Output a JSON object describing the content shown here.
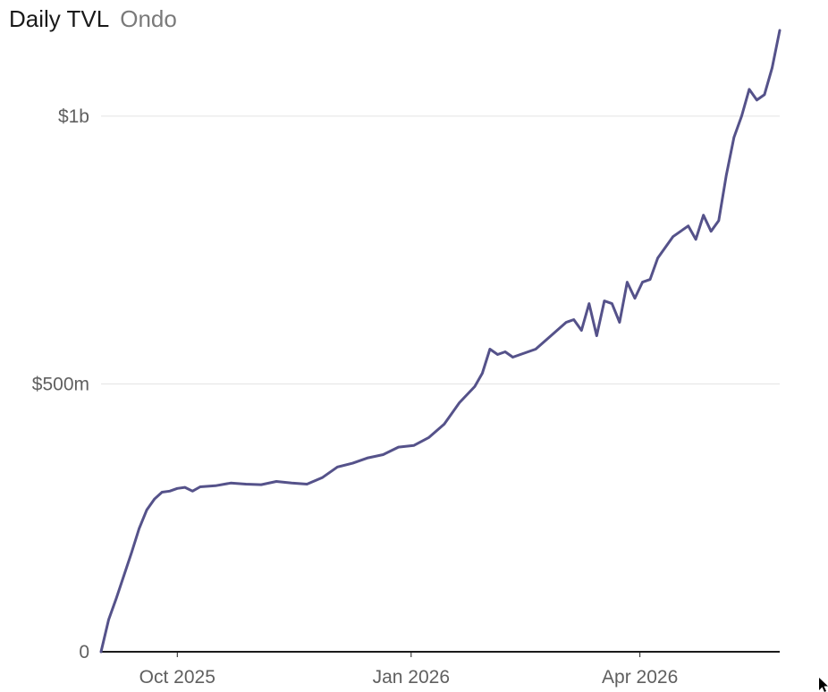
{
  "header": {
    "title": "Daily TVL",
    "subtitle": "Ondo"
  },
  "chart_data": {
    "type": "line",
    "title": "Daily TVL",
    "subtitle": "Ondo",
    "xlabel": "",
    "ylabel": "",
    "x_ticks": [
      {
        "date": "2025-10-01",
        "label": "Oct 2025"
      },
      {
        "date": "2026-01-01",
        "label": "Jan 2026"
      },
      {
        "date": "2026-04-01",
        "label": "Apr 2026"
      }
    ],
    "y_ticks": [
      {
        "value": 0,
        "label": "0"
      },
      {
        "value": 500000000,
        "label": "$500m"
      },
      {
        "value": 1000000000,
        "label": "$1b"
      }
    ],
    "xlim": [
      "2025-09-01",
      "2026-05-26"
    ],
    "ylim": [
      0,
      1150000000
    ],
    "grid": "horizontal",
    "line_color": "#55528a",
    "series": [
      {
        "x": [
          "2025-09-01",
          "2025-09-04",
          "2025-09-07",
          "2025-09-13",
          "2025-09-16",
          "2025-09-19",
          "2025-09-22",
          "2025-09-25",
          "2025-09-28",
          "2025-10-01",
          "2025-10-04",
          "2025-10-07",
          "2025-10-10",
          "2025-10-16",
          "2025-10-22",
          "2025-10-28",
          "2025-11-03",
          "2025-11-09",
          "2025-11-15",
          "2025-11-21",
          "2025-11-27",
          "2025-12-03",
          "2025-12-09",
          "2025-12-15",
          "2025-12-21",
          "2025-12-27",
          "2026-01-02",
          "2026-01-08",
          "2026-01-14",
          "2026-01-20",
          "2026-01-26",
          "2026-01-29",
          "2026-02-01",
          "2026-02-04",
          "2026-02-07",
          "2026-02-10",
          "2026-02-13",
          "2026-02-19",
          "2026-02-25",
          "2026-03-03",
          "2026-03-06",
          "2026-03-09",
          "2026-03-12",
          "2026-03-15",
          "2026-03-18",
          "2026-03-21",
          "2026-03-24",
          "2026-03-27",
          "2026-03-30",
          "2026-04-02",
          "2026-04-05",
          "2026-04-08",
          "2026-04-14",
          "2026-04-20",
          "2026-04-23",
          "2026-04-26",
          "2026-04-29",
          "2026-05-02",
          "2026-05-05",
          "2026-05-08",
          "2026-05-11",
          "2026-05-14",
          "2026-05-17",
          "2026-05-20",
          "2026-05-23",
          "2026-05-26"
        ],
        "y": [
          0,
          60000000,
          100000000,
          185000000,
          230000000,
          265000000,
          285000000,
          298000000,
          300000000,
          305000000,
          307000000,
          300000000,
          308000000,
          310000000,
          315000000,
          313000000,
          312000000,
          318000000,
          315000000,
          313000000,
          325000000,
          345000000,
          352000000,
          362000000,
          368000000,
          382000000,
          385000000,
          400000000,
          425000000,
          465000000,
          495000000,
          520000000,
          565000000,
          555000000,
          560000000,
          550000000,
          555000000,
          565000000,
          590000000,
          615000000,
          620000000,
          600000000,
          650000000,
          590000000,
          655000000,
          650000000,
          615000000,
          690000000,
          660000000,
          690000000,
          695000000,
          735000000,
          775000000,
          795000000,
          770000000,
          815000000,
          785000000,
          805000000,
          890000000,
          960000000,
          1000000000,
          1050000000,
          1030000000,
          1040000000,
          1090000000,
          1160000000
        ]
      }
    ]
  }
}
